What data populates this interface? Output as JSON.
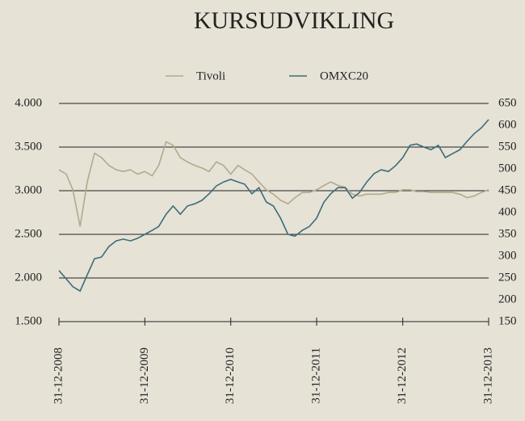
{
  "chart_data": {
    "type": "line",
    "title": "KURSUDVIKLING",
    "x": [
      "2008-12-31",
      "2009-01-31",
      "2009-02-28",
      "2009-03-31",
      "2009-04-30",
      "2009-05-31",
      "2009-06-30",
      "2009-07-31",
      "2009-08-31",
      "2009-09-30",
      "2009-10-31",
      "2009-11-30",
      "2009-12-31",
      "2010-01-31",
      "2010-02-28",
      "2010-03-31",
      "2010-04-30",
      "2010-05-31",
      "2010-06-30",
      "2010-07-31",
      "2010-08-31",
      "2010-09-30",
      "2010-10-31",
      "2010-11-30",
      "2010-12-31",
      "2011-01-31",
      "2011-02-28",
      "2011-03-31",
      "2011-04-30",
      "2011-05-31",
      "2011-06-30",
      "2011-07-31",
      "2011-08-31",
      "2011-09-30",
      "2011-10-31",
      "2011-11-30",
      "2011-12-31",
      "2012-01-31",
      "2012-02-29",
      "2012-03-31",
      "2012-04-30",
      "2012-05-31",
      "2012-06-30",
      "2012-07-31",
      "2012-08-31",
      "2012-09-30",
      "2012-10-31",
      "2012-11-30",
      "2012-12-31",
      "2013-01-31",
      "2013-02-28",
      "2013-03-31",
      "2013-04-30",
      "2013-05-31",
      "2013-06-30",
      "2013-07-31",
      "2013-08-31",
      "2013-09-30",
      "2013-10-31",
      "2013-11-30",
      "2013-12-31"
    ],
    "series": [
      {
        "name": "Tivoli",
        "color": "#b3a98b",
        "axis": "y",
        "values": [
          3240,
          3190,
          3010,
          2590,
          3100,
          3430,
          3380,
          3290,
          3240,
          3220,
          3240,
          3190,
          3220,
          3170,
          3290,
          3560,
          3520,
          3380,
          3330,
          3290,
          3260,
          3220,
          3330,
          3290,
          3190,
          3290,
          3240,
          3190,
          3100,
          3010,
          2960,
          2890,
          2850,
          2920,
          2980,
          2980,
          3010,
          3060,
          3100,
          3060,
          3040,
          2960,
          2940,
          2960,
          2960,
          2960,
          2980,
          2980,
          3010,
          3010,
          2990,
          2990,
          2980,
          2980,
          2980,
          2980,
          2960,
          2920,
          2940,
          2980,
          3010
        ]
      },
      {
        "name": "OMXC20",
        "color": "#3c6c7a",
        "axis": "y2",
        "values": [
          267,
          248,
          230,
          220,
          257,
          294,
          298,
          322,
          335,
          339,
          335,
          341,
          350,
          359,
          368,
          396,
          415,
          396,
          415,
          420,
          428,
          443,
          461,
          470,
          476,
          470,
          465,
          443,
          457,
          424,
          415,
          387,
          350,
          346,
          359,
          368,
          387,
          424,
          443,
          457,
          457,
          433,
          446,
          470,
          489,
          498,
          494,
          507,
          526,
          554,
          557,
          550,
          544,
          554,
          526,
          535,
          544,
          563,
          581,
          594,
          613
        ]
      }
    ],
    "ylim": [
      1500,
      4000
    ],
    "yticks": [
      {
        "value": 1500,
        "label": "1.500"
      },
      {
        "value": 2000,
        "label": "2.000"
      },
      {
        "value": 2500,
        "label": "2.500"
      },
      {
        "value": 3000,
        "label": "3.000"
      },
      {
        "value": 3500,
        "label": "3.500"
      },
      {
        "value": 4000,
        "label": "4.000"
      }
    ],
    "y2lim": [
      150,
      650
    ],
    "y2ticks": [
      150,
      200,
      250,
      300,
      350,
      400,
      450,
      500,
      550,
      600,
      650
    ],
    "xlim": [
      "2008-12-31",
      "2013-12-31"
    ],
    "xticks": [
      {
        "value": "2008-12-31",
        "label": "31-12-2008"
      },
      {
        "value": "2009-12-31",
        "label": "31-12-2009"
      },
      {
        "value": "2010-12-31",
        "label": "31-12-2010"
      },
      {
        "value": "2011-12-31",
        "label": "31-12-2011"
      },
      {
        "value": "2012-12-31",
        "label": "31-12-2012"
      },
      {
        "value": "2013-12-31",
        "label": "31-12-2013"
      }
    ],
    "grid": true,
    "legend": "top"
  }
}
